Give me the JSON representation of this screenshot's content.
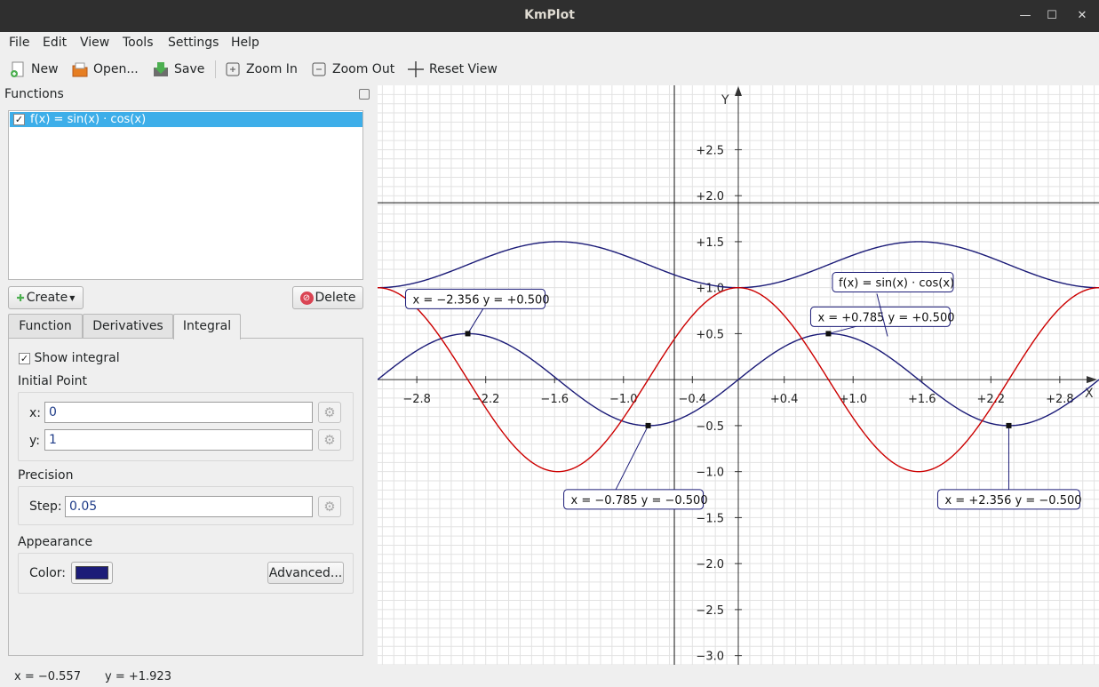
{
  "window": {
    "title": "KmPlot"
  },
  "menu": [
    "File",
    "Edit",
    "View",
    "Tools",
    "Settings",
    "Help"
  ],
  "toolbar": {
    "new": "New",
    "open": "Open...",
    "save": "Save",
    "zoom_in": "Zoom In",
    "zoom_out": "Zoom Out",
    "reset_view": "Reset View"
  },
  "functions_panel": {
    "title": "Functions",
    "items": [
      {
        "label": "f(x) = sin(x) · cos(x)",
        "checked": true
      }
    ],
    "create_label": "Create",
    "delete_label": "Delete"
  },
  "tabs": [
    "Function",
    "Derivatives",
    "Integral"
  ],
  "active_tab": "Integral",
  "integral": {
    "show_integral_label": "Show integral",
    "show_integral_checked": true,
    "initial_point_label": "Initial Point",
    "x_label": "x:",
    "x_value": "0",
    "y_label": "y:",
    "y_value": "1",
    "precision_label": "Precision",
    "step_label": "Step:",
    "step_value": "0.05",
    "appearance_label": "Appearance",
    "color_label": "Color:",
    "color_value": "#1c1c78",
    "advanced_label": "Advanced..."
  },
  "status": {
    "x": "x = −0.557",
    "y": "y = +1.923"
  },
  "chart_data": {
    "type": "line",
    "xlabel": "X",
    "ylabel": "Y",
    "xlim": [
      -3.14159,
      3.14159
    ],
    "ylim": [
      -3.1,
      3.2
    ],
    "x_ticks": [
      "−2.8",
      "−2.2",
      "−1.6",
      "−1.0",
      "−0.4",
      "+0.4",
      "+1.0",
      "+1.6",
      "+2.2",
      "+2.8"
    ],
    "x_tick_values": [
      -2.8,
      -2.2,
      -1.6,
      -1.0,
      -0.4,
      0.4,
      1.0,
      1.6,
      2.2,
      2.8
    ],
    "y_ticks": [
      "+2.5",
      "+2.0",
      "+1.5",
      "+1.0",
      "+0.5",
      "−0.5",
      "−1.0",
      "−1.5",
      "−2.0",
      "−2.5",
      "−3.0"
    ],
    "y_tick_values": [
      2.5,
      2.0,
      1.5,
      1.0,
      0.5,
      -0.5,
      -1.0,
      -1.5,
      -2.0,
      -2.5,
      -3.0
    ],
    "grid": true,
    "cursor": {
      "x": -0.557,
      "y": 1.923
    },
    "series": [
      {
        "expression": "f(x) = sin(x) · cos(x)",
        "role": "function",
        "color": "#1c1c78"
      },
      {
        "role": "integral",
        "color": "#1c1c78"
      },
      {
        "role": "derivative",
        "color": "#cc0000"
      }
    ],
    "function_label": "f(x) = sin(x) · cos(x)",
    "annotations": [
      {
        "text": "x = −2.356   y = +0.500",
        "x": -2.356,
        "y": 0.5
      },
      {
        "text": "x = +0.785   y = +0.500",
        "x": 0.785,
        "y": 0.5
      },
      {
        "text": "x = −0.785   y = −0.500",
        "x": -0.785,
        "y": -0.5
      },
      {
        "text": "x = +2.356   y = −0.500",
        "x": 2.356,
        "y": -0.5
      }
    ]
  }
}
